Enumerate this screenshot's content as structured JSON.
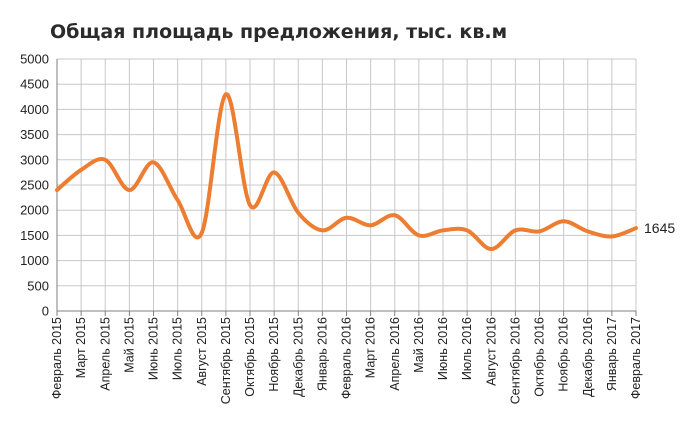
{
  "chart_data": {
    "type": "line",
    "title": "Общая площадь предложения, тыс. кв.м",
    "xlabel": "",
    "ylabel": "",
    "ylim": [
      0,
      5000
    ],
    "yticks": [
      0,
      500,
      1000,
      1500,
      2000,
      2500,
      3000,
      3500,
      4000,
      4500,
      5000
    ],
    "grid": true,
    "line_color": "#ed7d31",
    "categories": [
      "Февраль 2015",
      "Март 2015",
      "Апрель 2015",
      "Май 2015",
      "Июнь 2015",
      "Июль 2015",
      "Август 2015",
      "Сентябрь 2015",
      "Октябрь 2015",
      "Ноябрь 2015",
      "Декабрь 2015",
      "Январь 2016",
      "Февраль 2016",
      "Март 2016",
      "Апрель 2016",
      "Май 2016",
      "Июнь 2016",
      "Июль 2016",
      "Август 2016",
      "Сентябрь 2016",
      "Октябрь 2016",
      "Ноябрь 2016",
      "Декабрь 2016",
      "Январь 2017",
      "Февраль 2017"
    ],
    "values": [
      2400,
      2800,
      3000,
      2400,
      2950,
      2200,
      1550,
      4300,
      2100,
      2750,
      1950,
      1600,
      1850,
      1700,
      1900,
      1500,
      1600,
      1600,
      1230,
      1600,
      1580,
      1780,
      1580,
      1480,
      1645
    ],
    "end_label": "1645"
  }
}
